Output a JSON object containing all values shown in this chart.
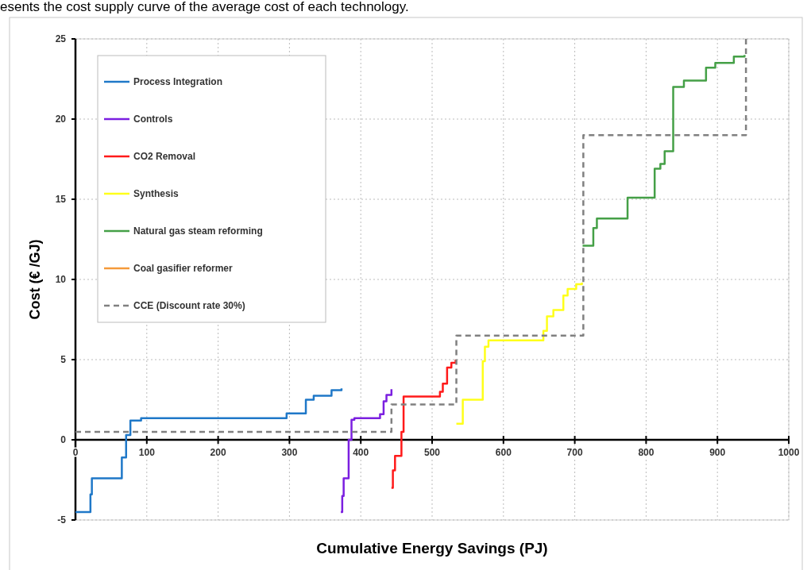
{
  "chart_data": {
    "type": "step",
    "xlabel": "Cumulative Energy Savings (PJ)",
    "ylabel": "Cost (€ /GJ)",
    "annotations": [
      "esents the cost supply curve of the average cost of each technology."
    ],
    "xlim": [
      0,
      1000
    ],
    "xticks": [
      0,
      100,
      200,
      300,
      400,
      500,
      600,
      700,
      800,
      900,
      1000
    ],
    "ylim": [
      -5,
      25
    ],
    "yticks": [
      -5,
      0,
      5,
      10,
      15,
      20,
      25
    ],
    "grid": true,
    "legend": "top left",
    "series": [
      {
        "name": "Process Integration",
        "color": "#1f78c8",
        "x": [
          0,
          21,
          23,
          65,
          71,
          77,
          92,
          296,
          323,
          334,
          359,
          373
        ],
        "values": [
          -4.5,
          -3.4,
          -2.4,
          -1.1,
          0.3,
          1.2,
          1.35,
          1.65,
          2.5,
          2.75,
          3.1,
          3.2
        ]
      },
      {
        "name": "Controls",
        "color": "#7b1fe0",
        "x": [
          372,
          374,
          376,
          383,
          387,
          391,
          427,
          432,
          436,
          443
        ],
        "values": [
          -4.5,
          -3.5,
          -2.4,
          0,
          1.25,
          1.35,
          1.6,
          2.4,
          2.8,
          3.15
        ]
      },
      {
        "name": "CO2 Removal",
        "color": "#ff1a1a",
        "x": [
          443,
          445,
          448,
          457,
          460,
          511,
          515,
          521,
          527,
          533
        ],
        "values": [
          -3,
          -1.9,
          -1,
          0.5,
          2.7,
          3,
          3.5,
          4.5,
          4.8,
          5
        ]
      },
      {
        "name": "Synthesis",
        "color": "#ffff1a",
        "x": [
          534,
          543,
          571,
          574,
          579,
          656,
          661,
          670,
          684,
          690,
          702,
          710
        ],
        "values": [
          1,
          2.5,
          4.9,
          5.8,
          6.2,
          6.8,
          7.7,
          8.1,
          9,
          9.4,
          9.7,
          9.8
        ]
      },
      {
        "name": "Natural gas steam reforming",
        "color": "#45a047",
        "x": [
          711,
          726,
          731,
          774,
          812,
          820,
          826,
          838,
          853,
          884,
          897,
          923,
          938
        ],
        "values": [
          12.1,
          13.2,
          13.8,
          15.1,
          16.9,
          17.2,
          18,
          22,
          22.4,
          23.2,
          23.5,
          23.9,
          24
        ]
      },
      {
        "name": "Coal gasifier reformer",
        "color": "#f59a3a"
      },
      {
        "name": "CCE (Discount rate 30%)",
        "color": "#808080",
        "line_style": "dashed",
        "x": [
          0,
          443,
          534,
          712,
          940,
          940
        ],
        "values": [
          0.5,
          2.2,
          6.5,
          19,
          25,
          25
        ]
      }
    ]
  }
}
